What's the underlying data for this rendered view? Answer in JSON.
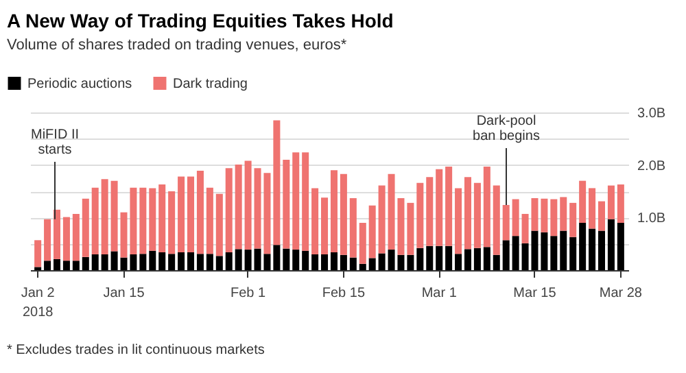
{
  "chart_data": {
    "type": "bar",
    "title": "A New Way of Trading Equities Takes Hold",
    "subtitle": "Volume of shares traded on trading venues, euros*",
    "categories": [
      "Jan 2\n2018",
      null,
      null,
      null,
      null,
      null,
      null,
      null,
      null,
      "Jan 15",
      null,
      null,
      null,
      null,
      null,
      null,
      null,
      null,
      null,
      null,
      null,
      null,
      "Feb 1",
      null,
      null,
      null,
      null,
      null,
      null,
      null,
      null,
      null,
      "Feb 15",
      null,
      null,
      null,
      null,
      null,
      null,
      null,
      null,
      null,
      "Mar 1",
      null,
      null,
      null,
      null,
      null,
      null,
      null,
      null,
      null,
      "Mar 15",
      null,
      null,
      null,
      null,
      null,
      null,
      null,
      null,
      "Mar 28"
    ],
    "stacked": true,
    "series": [
      {
        "name": "Periodic auctions",
        "color": "#000000",
        "values": [
          0.06,
          0.18,
          0.21,
          0.18,
          0.18,
          0.25,
          0.3,
          0.3,
          0.36,
          0.24,
          0.3,
          0.31,
          0.37,
          0.34,
          0.31,
          0.34,
          0.34,
          0.31,
          0.31,
          0.27,
          0.34,
          0.4,
          0.39,
          0.41,
          0.31,
          0.48,
          0.41,
          0.39,
          0.37,
          0.3,
          0.3,
          0.34,
          0.29,
          0.24,
          0.12,
          0.23,
          0.32,
          0.39,
          0.29,
          0.29,
          0.42,
          0.46,
          0.46,
          0.46,
          0.31,
          0.4,
          0.42,
          0.44,
          0.29,
          0.57,
          0.65,
          0.51,
          0.75,
          0.72,
          0.65,
          0.75,
          0.63,
          0.9,
          0.79,
          0.75,
          0.97,
          0.9
        ]
      },
      {
        "name": "Dark trading",
        "color": "#ef7370",
        "values": [
          0.51,
          0.79,
          0.94,
          0.83,
          0.89,
          1.11,
          1.27,
          1.43,
          1.34,
          0.86,
          1.27,
          1.26,
          1.19,
          1.29,
          1.19,
          1.44,
          1.44,
          1.58,
          1.26,
          1.18,
          1.6,
          1.61,
          1.69,
          1.53,
          1.54,
          2.37,
          1.69,
          1.85,
          1.87,
          1.26,
          1.08,
          1.56,
          1.54,
          1.13,
          0.78,
          1.0,
          1.29,
          1.44,
          1.08,
          0.99,
          1.24,
          1.31,
          1.46,
          1.51,
          1.25,
          1.37,
          1.24,
          1.53,
          1.32,
          0.67,
          0.7,
          0.56,
          0.62,
          0.64,
          0.7,
          0.64,
          0.65,
          0.8,
          0.77,
          0.56,
          0.64,
          0.73
        ]
      }
    ],
    "ylim": [
      0,
      3
    ],
    "yticks": [
      {
        "value": 0.5,
        "label": null
      },
      {
        "value": 1,
        "label": "1.0B"
      },
      {
        "value": 1.5,
        "label": null
      },
      {
        "value": 2,
        "label": "2.0B"
      },
      {
        "value": 2.5,
        "label": null
      },
      {
        "value": 3,
        "label": "3.0B"
      }
    ],
    "grid": "y",
    "legend": "top left",
    "annotations": [
      {
        "text": "MiFID II\nstarts",
        "y": 0.97
      },
      {
        "text": "Dark-pool\nban begins",
        "y": 1.24
      },
      "* Excludes trades in lit continuous markets"
    ]
  }
}
